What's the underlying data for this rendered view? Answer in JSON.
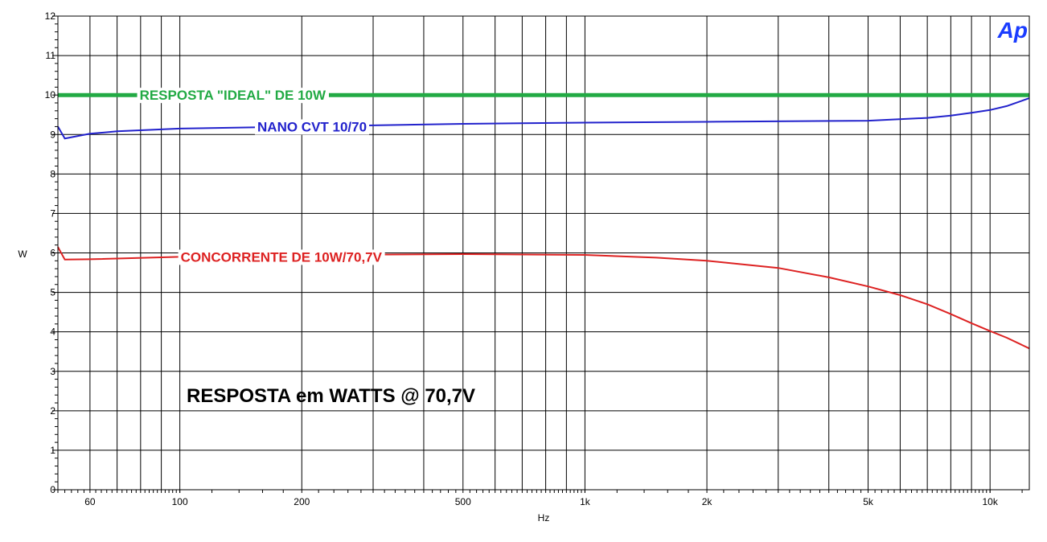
{
  "chart_data": {
    "type": "line",
    "title": "",
    "xlabel": "Hz",
    "ylabel": "W",
    "xscale": "log",
    "xlim": [
      50,
      12500
    ],
    "ylim": [
      0,
      12
    ],
    "grid": true,
    "x_ticks": [
      {
        "value": 60,
        "label": "60"
      },
      {
        "value": 100,
        "label": "100"
      },
      {
        "value": 200,
        "label": "200"
      },
      {
        "value": 500,
        "label": "500"
      },
      {
        "value": 1000,
        "label": "1k"
      },
      {
        "value": 2000,
        "label": "2k"
      },
      {
        "value": 5000,
        "label": "5k"
      },
      {
        "value": 10000,
        "label": "10k"
      }
    ],
    "y_ticks": [
      {
        "value": 0,
        "label": "0"
      },
      {
        "value": 1,
        "label": "1"
      },
      {
        "value": 2,
        "label": "2"
      },
      {
        "value": 3,
        "label": "3"
      },
      {
        "value": 4,
        "label": "4"
      },
      {
        "value": 5,
        "label": "5"
      },
      {
        "value": 6,
        "label": "6"
      },
      {
        "value": 7,
        "label": "7"
      },
      {
        "value": 8,
        "label": "8"
      },
      {
        "value": 9,
        "label": "9"
      },
      {
        "value": 10,
        "label": "10"
      },
      {
        "value": 11,
        "label": "11"
      },
      {
        "value": 12,
        "label": "12"
      }
    ],
    "series": [
      {
        "name": "RESPOSTA \"IDEAL\" DE 10W",
        "color": "#22aa44",
        "x": [
          50,
          12500
        ],
        "y": [
          10,
          10
        ]
      },
      {
        "name": "NANO CVT 10/70",
        "color": "#2222cc",
        "x": [
          50,
          52,
          60,
          70,
          100,
          200,
          500,
          1000,
          2000,
          5000,
          7000,
          8000,
          9000,
          10000,
          11000,
          12500
        ],
        "y": [
          9.2,
          8.9,
          9.02,
          9.08,
          9.15,
          9.2,
          9.27,
          9.3,
          9.32,
          9.35,
          9.42,
          9.48,
          9.55,
          9.62,
          9.72,
          9.92
        ]
      },
      {
        "name": "CONCORRENTE DE 10W/70,7V",
        "color": "#dd2222",
        "x": [
          50,
          52,
          60,
          100,
          200,
          500,
          1000,
          1500,
          2000,
          3000,
          4000,
          5000,
          6000,
          7000,
          8000,
          9000,
          10000,
          11000,
          12500
        ],
        "y": [
          6.15,
          5.83,
          5.84,
          5.9,
          5.95,
          5.97,
          5.95,
          5.88,
          5.8,
          5.62,
          5.38,
          5.15,
          4.93,
          4.7,
          4.45,
          4.22,
          4.02,
          3.85,
          3.58
        ]
      }
    ],
    "series_labels": [
      {
        "text": "RESPOSTA \"IDEAL\" DE 10W",
        "x": 135,
        "y": 10,
        "color": "#22aa44"
      },
      {
        "text": "NANO CVT 10/70",
        "x": 212,
        "y": 9.2,
        "color": "#2222cc"
      },
      {
        "text": "CONCORRENTE DE 10W/70,7V",
        "x": 178,
        "y": 5.9,
        "color": "#dd2222"
      }
    ],
    "annotation": {
      "text": "RESPOSTA em WATTS @ 70,7V"
    },
    "logo": {
      "text": "Ap",
      "color": "#1a3cff"
    }
  }
}
